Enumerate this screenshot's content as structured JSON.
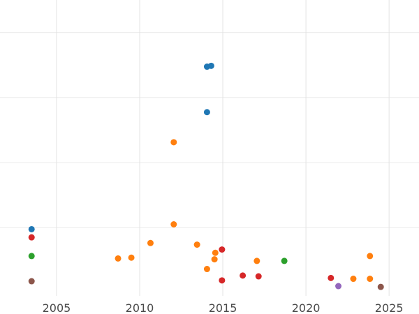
{
  "chart_data": {
    "type": "scatter",
    "title": "",
    "xlabel": "",
    "ylabel": "",
    "xlim": [
      2001.6,
      2026.8
    ],
    "ylim": [
      -2,
      180
    ],
    "xticks": [
      2005,
      2010,
      2015,
      2020,
      2025
    ],
    "xtick_labels": [
      "2005",
      "2010",
      "2015",
      "2020",
      "2025"
    ],
    "yticks": [
      40,
      80,
      120,
      160
    ],
    "grid": true,
    "legend": "none",
    "series": [
      {
        "color": "#1f77b4",
        "points": [
          {
            "x": 2003.5,
            "y": 39
          },
          {
            "x": 2014.05,
            "y": 111
          },
          {
            "x": 2014.05,
            "y": 139
          },
          {
            "x": 2014.3,
            "y": 139.5
          }
        ]
      },
      {
        "color": "#d62728",
        "points": [
          {
            "x": 2003.5,
            "y": 34
          },
          {
            "x": 2014.95,
            "y": 26.5
          },
          {
            "x": 2014.95,
            "y": 7.5
          },
          {
            "x": 2016.2,
            "y": 10.5
          },
          {
            "x": 2017.15,
            "y": 10
          },
          {
            "x": 2021.5,
            "y": 9
          }
        ]
      },
      {
        "color": "#2ca02c",
        "points": [
          {
            "x": 2003.5,
            "y": 22.5
          },
          {
            "x": 2018.7,
            "y": 19.5
          }
        ]
      },
      {
        "color": "#8c564b",
        "points": [
          {
            "x": 2003.5,
            "y": 7
          },
          {
            "x": 2024.5,
            "y": 3.5
          }
        ]
      },
      {
        "color": "#ff7f0e",
        "points": [
          {
            "x": 2008.7,
            "y": 21
          },
          {
            "x": 2009.5,
            "y": 21.5
          },
          {
            "x": 2010.65,
            "y": 30.5
          },
          {
            "x": 2012.05,
            "y": 42
          },
          {
            "x": 2012.05,
            "y": 92.5
          },
          {
            "x": 2013.45,
            "y": 29.5
          },
          {
            "x": 2014.05,
            "y": 14.5
          },
          {
            "x": 2014.5,
            "y": 20.5
          },
          {
            "x": 2014.55,
            "y": 24.5
          },
          {
            "x": 2017.05,
            "y": 19.5
          },
          {
            "x": 2022.85,
            "y": 8.5
          },
          {
            "x": 2023.85,
            "y": 22.5
          },
          {
            "x": 2023.85,
            "y": 8.5
          }
        ]
      },
      {
        "color": "#9467bd",
        "points": [
          {
            "x": 2021.95,
            "y": 4
          }
        ]
      }
    ]
  }
}
